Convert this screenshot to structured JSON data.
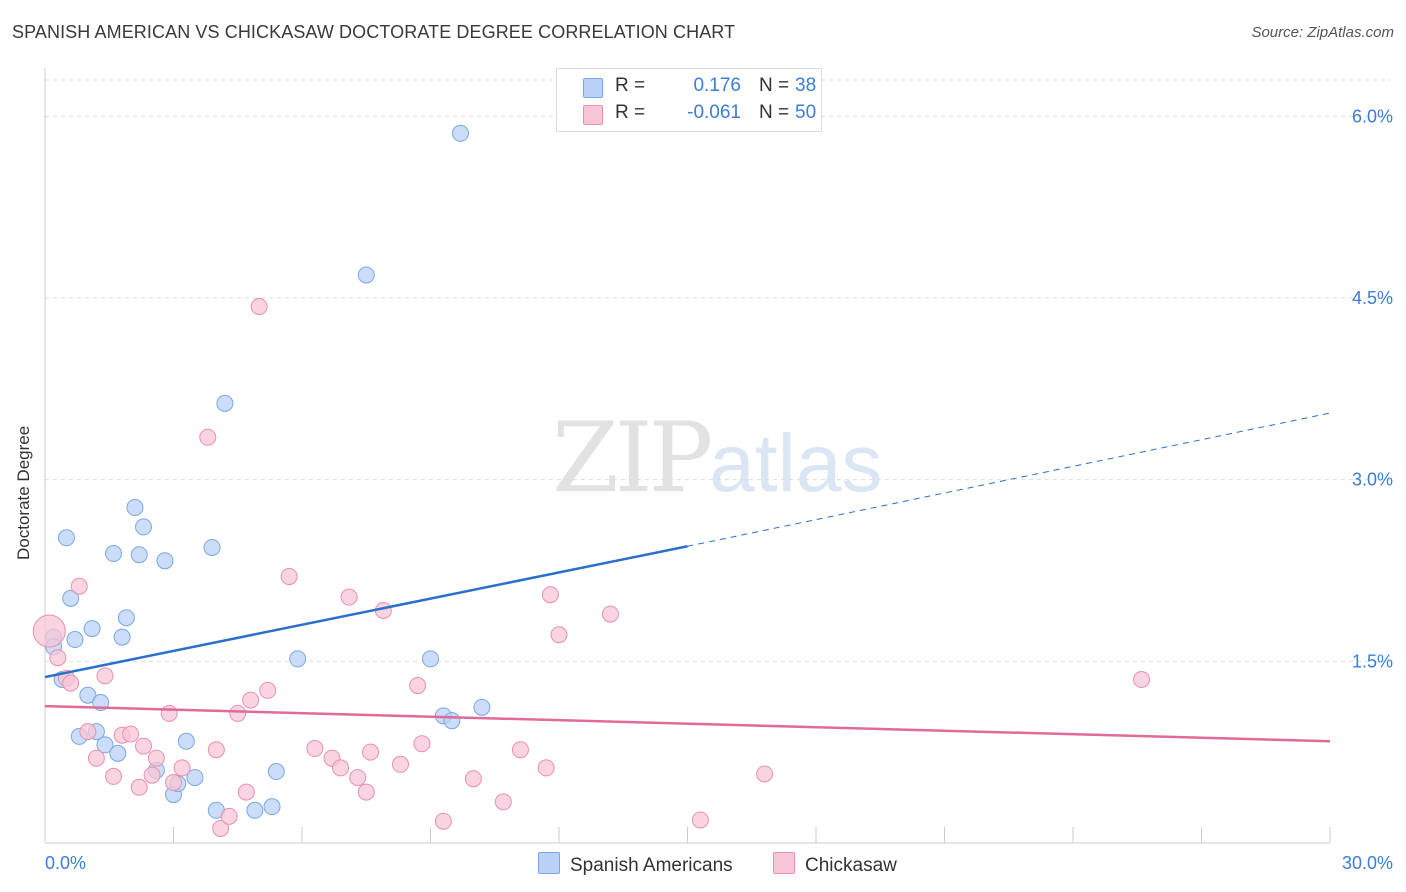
{
  "title": "SPANISH AMERICAN VS CHICKASAW DOCTORATE DEGREE CORRELATION CHART",
  "source": "Source: ZipAtlas.com",
  "watermark": {
    "zip": "ZIP",
    "atlas": "atlas"
  },
  "legend": {
    "r_label": "R =",
    "n_label": "N =",
    "series": [
      {
        "r": "0.176",
        "n": "38"
      },
      {
        "r": "-0.061",
        "n": "50"
      }
    ]
  },
  "bottom_legend": [
    "Spanish Americans",
    "Chickasaw"
  ],
  "colors": {
    "blue_fill": "#b9d2f5",
    "blue_stroke": "#7aa7e2",
    "blue_line": "#2b6fcc",
    "pink_fill": "#f8c6d6",
    "pink_stroke": "#e891ae",
    "pink_line": "#e06b98",
    "tick_text": "#3b7dd8",
    "grid": "#dddddd"
  },
  "chart_data": {
    "type": "scatter",
    "title": "SPANISH AMERICAN VS CHICKASAW DOCTORATE DEGREE CORRELATION CHART",
    "xlabel": "",
    "ylabel": "Doctorate Degree",
    "xlim": [
      0,
      30
    ],
    "ylim": [
      0,
      6.3
    ],
    "x_ticks": [
      "0.0%",
      "30.0%"
    ],
    "y_ticks": [
      {
        "value": 1.5,
        "label": "1.5%"
      },
      {
        "value": 3.0,
        "label": "3.0%"
      },
      {
        "value": 4.5,
        "label": "4.5%"
      },
      {
        "value": 6.0,
        "label": "6.0%"
      }
    ],
    "grid": "horizontal dashed",
    "legend_position": "top-center",
    "series": [
      {
        "name": "Spanish Americans",
        "color": "#b9d2f5",
        "trend": {
          "x0": 0,
          "y0": 1.37,
          "x1": 15,
          "y1": 2.45,
          "dashed_to_x": 30,
          "dashed_to_y": 3.55
        },
        "points": [
          [
            0.2,
            1.7
          ],
          [
            0.2,
            1.62
          ],
          [
            0.4,
            1.35
          ],
          [
            0.5,
            2.52
          ],
          [
            0.6,
            2.02
          ],
          [
            0.7,
            1.68
          ],
          [
            0.8,
            0.88
          ],
          [
            1.0,
            1.22
          ],
          [
            1.1,
            1.77
          ],
          [
            1.2,
            0.92
          ],
          [
            1.3,
            1.16
          ],
          [
            1.4,
            0.81
          ],
          [
            1.6,
            2.39
          ],
          [
            1.7,
            0.74
          ],
          [
            1.8,
            1.7
          ],
          [
            1.9,
            1.86
          ],
          [
            2.1,
            2.77
          ],
          [
            2.2,
            2.38
          ],
          [
            2.3,
            2.61
          ],
          [
            2.6,
            0.6
          ],
          [
            2.8,
            2.33
          ],
          [
            3.0,
            0.4
          ],
          [
            3.1,
            0.49
          ],
          [
            3.3,
            0.84
          ],
          [
            3.5,
            0.54
          ],
          [
            3.9,
            2.44
          ],
          [
            4.0,
            0.27
          ],
          [
            4.2,
            3.63
          ],
          [
            4.9,
            0.27
          ],
          [
            5.3,
            0.3
          ],
          [
            5.4,
            0.59
          ],
          [
            5.9,
            1.52
          ],
          [
            7.5,
            4.69
          ],
          [
            9.0,
            1.52
          ],
          [
            9.3,
            1.05
          ],
          [
            9.5,
            1.01
          ],
          [
            9.7,
            5.86
          ],
          [
            10.2,
            1.12
          ]
        ]
      },
      {
        "name": "Chickasaw",
        "color": "#f8c6d6",
        "trend": {
          "x0": 0,
          "y0": 1.13,
          "x1": 30,
          "y1": 0.84
        },
        "points": [
          [
            0.1,
            1.75
          ],
          [
            0.3,
            1.53
          ],
          [
            0.5,
            1.36
          ],
          [
            0.6,
            1.32
          ],
          [
            0.8,
            2.12
          ],
          [
            1.0,
            0.92
          ],
          [
            1.2,
            0.7
          ],
          [
            1.4,
            1.38
          ],
          [
            1.6,
            0.55
          ],
          [
            1.8,
            0.89
          ],
          [
            2.0,
            0.9
          ],
          [
            2.2,
            0.46
          ],
          [
            2.3,
            0.8
          ],
          [
            2.5,
            0.56
          ],
          [
            2.6,
            0.7
          ],
          [
            2.9,
            1.07
          ],
          [
            3.0,
            0.5
          ],
          [
            3.2,
            0.62
          ],
          [
            3.8,
            3.35
          ],
          [
            4.0,
            0.77
          ],
          [
            4.1,
            0.12
          ],
          [
            4.3,
            0.22
          ],
          [
            4.5,
            1.07
          ],
          [
            4.7,
            0.42
          ],
          [
            4.8,
            1.18
          ],
          [
            5.0,
            4.43
          ],
          [
            5.2,
            1.26
          ],
          [
            5.7,
            2.2
          ],
          [
            6.3,
            0.78
          ],
          [
            6.7,
            0.7
          ],
          [
            6.9,
            0.62
          ],
          [
            7.1,
            2.03
          ],
          [
            7.3,
            0.54
          ],
          [
            7.5,
            0.42
          ],
          [
            7.6,
            0.75
          ],
          [
            7.9,
            1.92
          ],
          [
            8.3,
            0.65
          ],
          [
            8.7,
            1.3
          ],
          [
            8.8,
            0.82
          ],
          [
            9.3,
            0.18
          ],
          [
            10.0,
            0.53
          ],
          [
            10.7,
            0.34
          ],
          [
            11.1,
            0.77
          ],
          [
            11.7,
            0.62
          ],
          [
            11.8,
            2.05
          ],
          [
            12.0,
            1.72
          ],
          [
            13.2,
            1.89
          ],
          [
            15.3,
            0.19
          ],
          [
            16.8,
            0.57
          ],
          [
            25.6,
            1.35
          ]
        ]
      }
    ]
  }
}
